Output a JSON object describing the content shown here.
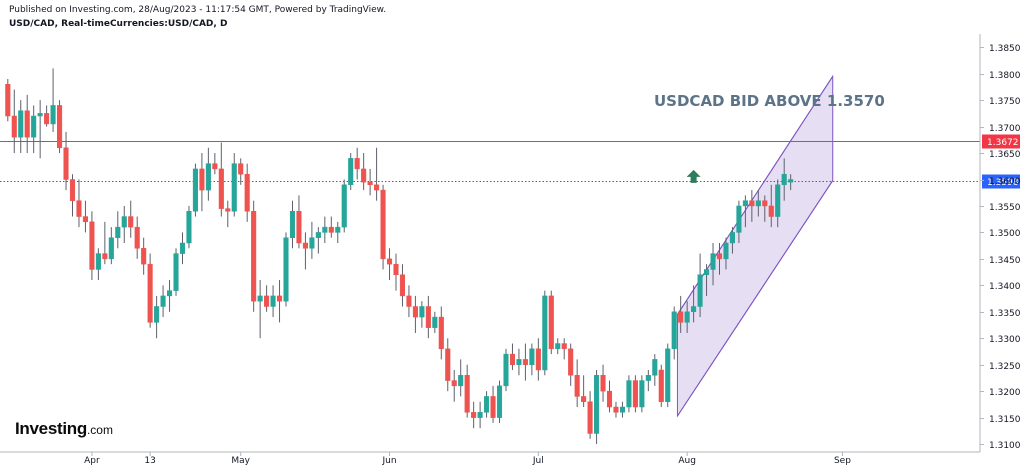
{
  "header": {
    "published": "Published on Investing.com, 28/Aug/2023 - 11:17:54 GMT, Powered by TradingView.",
    "symbol": "USD/CAD, Real-timeCurrencies:USD/CAD, D"
  },
  "logo": {
    "main": "Investing",
    "tld": ".com"
  },
  "chart_data": {
    "type": "candlestick",
    "annotation": "USDCAD BID ABOVE 1.3570",
    "ylim": [
      1.3085,
      1.3875
    ],
    "y_ticks": [
      "1.3850",
      "1.3800",
      "1.3750",
      "1.3700",
      "1.3650",
      "1.3600",
      "1.3550",
      "1.3500",
      "1.3450",
      "1.3400",
      "1.3350",
      "1.3300",
      "1.3250",
      "1.3200",
      "1.3150",
      "1.3100"
    ],
    "x_ticks": [
      {
        "label": "Apr",
        "index": 13
      },
      {
        "label": "13",
        "index": 22
      },
      {
        "label": "May",
        "index": 36
      },
      {
        "label": "Jun",
        "index": 59
      },
      {
        "label": "Jul",
        "index": 82
      },
      {
        "label": "Aug",
        "index": 105
      },
      {
        "label": "Sep",
        "index": 129
      }
    ],
    "horizontal_lines": [
      {
        "value": 1.3672,
        "label": "1.3672",
        "color": "#f23645",
        "style": "solid"
      },
      {
        "value": 1.3598,
        "label": "1.3598",
        "color": "#2962ff",
        "style": "dotted"
      }
    ],
    "channel": {
      "upper": [
        {
          "index": 103.5,
          "value": 1.3345
        },
        {
          "index": 127.5,
          "value": 1.3795
        }
      ],
      "lower": [
        {
          "index": 103.5,
          "value": 1.3153
        },
        {
          "index": 127.5,
          "value": 1.3598
        }
      ]
    },
    "marker": {
      "type": "arrow-up",
      "index": 106,
      "value": 1.3605,
      "color": "#2e7d5b"
    },
    "colors": {
      "up": "#26a69a",
      "down": "#ef5350",
      "channel_fill": "#d1c4e9",
      "channel_line": "#7e57c2",
      "annotation": "#5d7387",
      "axis_text": "#131722"
    },
    "candles": [
      [
        1.378,
        1.379,
        1.371,
        1.372
      ],
      [
        1.372,
        1.377,
        1.365,
        1.368
      ],
      [
        1.368,
        1.375,
        1.365,
        1.373
      ],
      [
        1.373,
        1.376,
        1.365,
        1.368
      ],
      [
        1.368,
        1.374,
        1.365,
        1.372
      ],
      [
        1.372,
        1.375,
        1.364,
        1.3725
      ],
      [
        1.3725,
        1.374,
        1.37,
        1.3705
      ],
      [
        1.3705,
        1.381,
        1.369,
        1.374
      ],
      [
        1.374,
        1.375,
        1.365,
        1.366
      ],
      [
        1.366,
        1.369,
        1.358,
        1.36
      ],
      [
        1.36,
        1.361,
        1.353,
        1.356
      ],
      [
        1.356,
        1.36,
        1.351,
        1.353
      ],
      [
        1.353,
        1.356,
        1.35,
        1.352
      ],
      [
        1.352,
        1.354,
        1.341,
        1.343
      ],
      [
        1.343,
        1.347,
        1.341,
        1.346
      ],
      [
        1.346,
        1.352,
        1.344,
        1.345
      ],
      [
        1.345,
        1.351,
        1.344,
        1.349
      ],
      [
        1.349,
        1.354,
        1.347,
        1.351
      ],
      [
        1.351,
        1.355,
        1.348,
        1.353
      ],
      [
        1.353,
        1.356,
        1.349,
        1.351
      ],
      [
        1.351,
        1.353,
        1.345,
        1.347
      ],
      [
        1.347,
        1.349,
        1.342,
        1.344
      ],
      [
        1.344,
        1.346,
        1.332,
        1.333
      ],
      [
        1.333,
        1.338,
        1.33,
        1.336
      ],
      [
        1.336,
        1.34,
        1.334,
        1.338
      ],
      [
        1.338,
        1.341,
        1.335,
        1.339
      ],
      [
        1.339,
        1.347,
        1.338,
        1.346
      ],
      [
        1.346,
        1.35,
        1.344,
        1.348
      ],
      [
        1.348,
        1.355,
        1.347,
        1.354
      ],
      [
        1.354,
        1.363,
        1.353,
        1.362
      ],
      [
        1.362,
        1.365,
        1.354,
        1.358
      ],
      [
        1.358,
        1.366,
        1.356,
        1.363
      ],
      [
        1.363,
        1.365,
        1.361,
        1.362
      ],
      [
        1.362,
        1.367,
        1.353,
        1.3545
      ],
      [
        1.3545,
        1.356,
        1.351,
        1.354
      ],
      [
        1.354,
        1.365,
        1.353,
        1.363
      ],
      [
        1.363,
        1.364,
        1.359,
        1.361
      ],
      [
        1.361,
        1.363,
        1.352,
        1.354
      ],
      [
        1.354,
        1.356,
        1.335,
        1.337
      ],
      [
        1.337,
        1.341,
        1.33,
        1.338
      ],
      [
        1.338,
        1.34,
        1.335,
        1.336
      ],
      [
        1.336,
        1.34,
        1.334,
        1.338
      ],
      [
        1.338,
        1.341,
        1.333,
        1.337
      ],
      [
        1.337,
        1.35,
        1.336,
        1.349
      ],
      [
        1.349,
        1.356,
        1.347,
        1.354
      ],
      [
        1.354,
        1.357,
        1.347,
        1.348
      ],
      [
        1.348,
        1.35,
        1.343,
        1.347
      ],
      [
        1.347,
        1.352,
        1.345,
        1.349
      ],
      [
        1.349,
        1.351,
        1.346,
        1.35
      ],
      [
        1.35,
        1.353,
        1.348,
        1.351
      ],
      [
        1.351,
        1.353,
        1.349,
        1.35
      ],
      [
        1.35,
        1.352,
        1.348,
        1.351
      ],
      [
        1.351,
        1.36,
        1.35,
        1.359
      ],
      [
        1.359,
        1.365,
        1.358,
        1.364
      ],
      [
        1.364,
        1.366,
        1.36,
        1.362
      ],
      [
        1.362,
        1.365,
        1.358,
        1.3595
      ],
      [
        1.3595,
        1.362,
        1.357,
        1.359
      ],
      [
        1.359,
        1.366,
        1.356,
        1.358
      ],
      [
        1.358,
        1.359,
        1.343,
        1.345
      ],
      [
        1.345,
        1.347,
        1.341,
        1.344
      ],
      [
        1.344,
        1.346,
        1.339,
        1.342
      ],
      [
        1.342,
        1.344,
        1.336,
        1.338
      ],
      [
        1.338,
        1.34,
        1.334,
        1.336
      ],
      [
        1.336,
        1.338,
        1.331,
        1.334
      ],
      [
        1.334,
        1.337,
        1.332,
        1.336
      ],
      [
        1.336,
        1.338,
        1.33,
        1.332
      ],
      [
        1.332,
        1.335,
        1.331,
        1.334
      ],
      [
        1.334,
        1.336,
        1.326,
        1.328
      ],
      [
        1.328,
        1.33,
        1.32,
        1.322
      ],
      [
        1.322,
        1.324,
        1.318,
        1.321
      ],
      [
        1.321,
        1.326,
        1.319,
        1.323
      ],
      [
        1.323,
        1.325,
        1.315,
        1.316
      ],
      [
        1.316,
        1.318,
        1.313,
        1.315
      ],
      [
        1.315,
        1.318,
        1.313,
        1.316
      ],
      [
        1.316,
        1.32,
        1.315,
        1.319
      ],
      [
        1.319,
        1.321,
        1.314,
        1.315
      ],
      [
        1.315,
        1.322,
        1.314,
        1.321
      ],
      [
        1.321,
        1.328,
        1.32,
        1.327
      ],
      [
        1.327,
        1.329,
        1.324,
        1.325
      ],
      [
        1.325,
        1.328,
        1.323,
        1.326
      ],
      [
        1.326,
        1.329,
        1.322,
        1.325
      ],
      [
        1.325,
        1.329,
        1.323,
        1.328
      ],
      [
        1.328,
        1.33,
        1.322,
        1.324
      ],
      [
        1.324,
        1.339,
        1.323,
        1.338
      ],
      [
        1.338,
        1.339,
        1.327,
        1.328
      ],
      [
        1.328,
        1.33,
        1.327,
        1.329
      ],
      [
        1.329,
        1.33,
        1.326,
        1.328
      ],
      [
        1.328,
        1.329,
        1.321,
        1.323
      ],
      [
        1.323,
        1.326,
        1.317,
        1.319
      ],
      [
        1.319,
        1.323,
        1.317,
        1.318
      ],
      [
        1.318,
        1.32,
        1.311,
        1.312
      ],
      [
        1.312,
        1.324,
        1.31,
        1.323
      ],
      [
        1.323,
        1.325,
        1.318,
        1.32
      ],
      [
        1.32,
        1.322,
        1.316,
        1.317
      ],
      [
        1.317,
        1.318,
        1.315,
        1.316
      ],
      [
        1.316,
        1.318,
        1.315,
        1.317
      ],
      [
        1.317,
        1.323,
        1.316,
        1.322
      ],
      [
        1.322,
        1.323,
        1.316,
        1.317
      ],
      [
        1.317,
        1.323,
        1.316,
        1.322
      ],
      [
        1.322,
        1.324,
        1.32,
        1.323
      ],
      [
        1.323,
        1.327,
        1.321,
        1.326
      ],
      [
        1.324,
        1.325,
        1.317,
        1.318
      ],
      [
        1.318,
        1.329,
        1.317,
        1.328
      ],
      [
        1.328,
        1.336,
        1.326,
        1.335
      ],
      [
        1.335,
        1.338,
        1.331,
        1.333
      ],
      [
        1.333,
        1.337,
        1.331,
        1.335
      ],
      [
        1.335,
        1.34,
        1.333,
        1.336
      ],
      [
        1.336,
        1.346,
        1.334,
        1.342
      ],
      [
        1.342,
        1.344,
        1.338,
        1.343
      ],
      [
        1.343,
        1.348,
        1.34,
        1.346
      ],
      [
        1.346,
        1.348,
        1.342,
        1.345
      ],
      [
        1.345,
        1.349,
        1.343,
        1.348
      ],
      [
        1.348,
        1.351,
        1.346,
        1.35
      ],
      [
        1.35,
        1.356,
        1.348,
        1.355
      ],
      [
        1.355,
        1.357,
        1.351,
        1.356
      ],
      [
        1.356,
        1.358,
        1.352,
        1.355
      ],
      [
        1.355,
        1.358,
        1.353,
        1.356
      ],
      [
        1.356,
        1.357,
        1.352,
        1.355
      ],
      [
        1.355,
        1.359,
        1.351,
        1.353
      ],
      [
        1.353,
        1.36,
        1.351,
        1.359
      ],
      [
        1.359,
        1.364,
        1.356,
        1.361
      ],
      [
        1.3595,
        1.361,
        1.358,
        1.36
      ]
    ]
  }
}
